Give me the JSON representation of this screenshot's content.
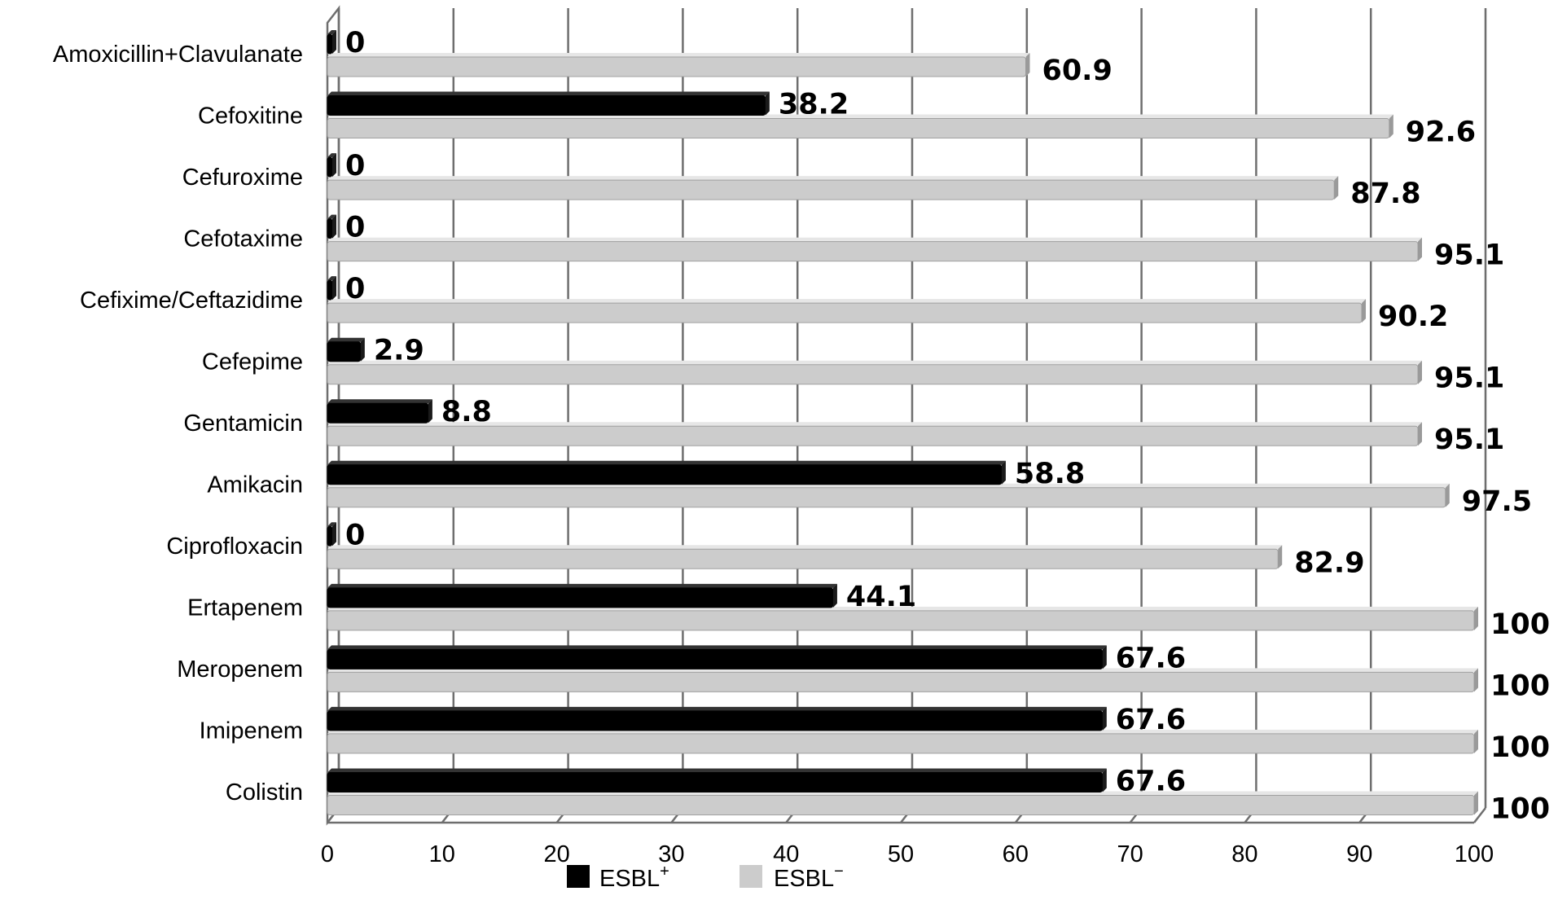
{
  "chart_data": {
    "type": "bar",
    "orientation": "horizontal",
    "title": "",
    "xlabel": "",
    "ylabel": "",
    "xlim": [
      0,
      100
    ],
    "x_ticks": [
      "0",
      "10",
      "20",
      "30",
      "40",
      "50",
      "60",
      "70",
      "80",
      "90",
      "100"
    ],
    "grid": true,
    "legend_position": "bottom",
    "categories": [
      "Amoxicillin+Clavulanate",
      "Cefoxitine",
      "Cefuroxime",
      "Cefotaxime",
      "Cefixime/Ceftazidime",
      "Cefepime",
      "Gentamicin",
      "Amikacin",
      "Ciprofloxacin",
      "Ertapenem",
      "Meropenem",
      "Imipenem",
      "Colistin"
    ],
    "series": [
      {
        "name": "ESBL",
        "name_sup": "+",
        "color": "#000000",
        "values": [
          0,
          38.2,
          0,
          0,
          0,
          2.9,
          8.8,
          58.8,
          0,
          44.1,
          67.6,
          67.6,
          67.6
        ],
        "labels": [
          "0",
          "38.2",
          "0",
          "0",
          "0",
          "2.9",
          "8.8",
          "58.8",
          "0",
          "44.1",
          "67.6",
          "67.6",
          "67.6"
        ]
      },
      {
        "name": "ESBL",
        "name_sup": "−",
        "color": "#cccccc",
        "values": [
          60.9,
          92.6,
          87.8,
          95.1,
          90.2,
          95.1,
          95.1,
          97.5,
          82.9,
          100,
          100,
          100,
          100
        ],
        "labels": [
          "60.9",
          "92.6",
          "87.8",
          "95.1",
          "90.2",
          "95.1",
          "95.1",
          "97.5",
          "82.9",
          "100",
          "100",
          "100",
          "100"
        ]
      }
    ]
  }
}
